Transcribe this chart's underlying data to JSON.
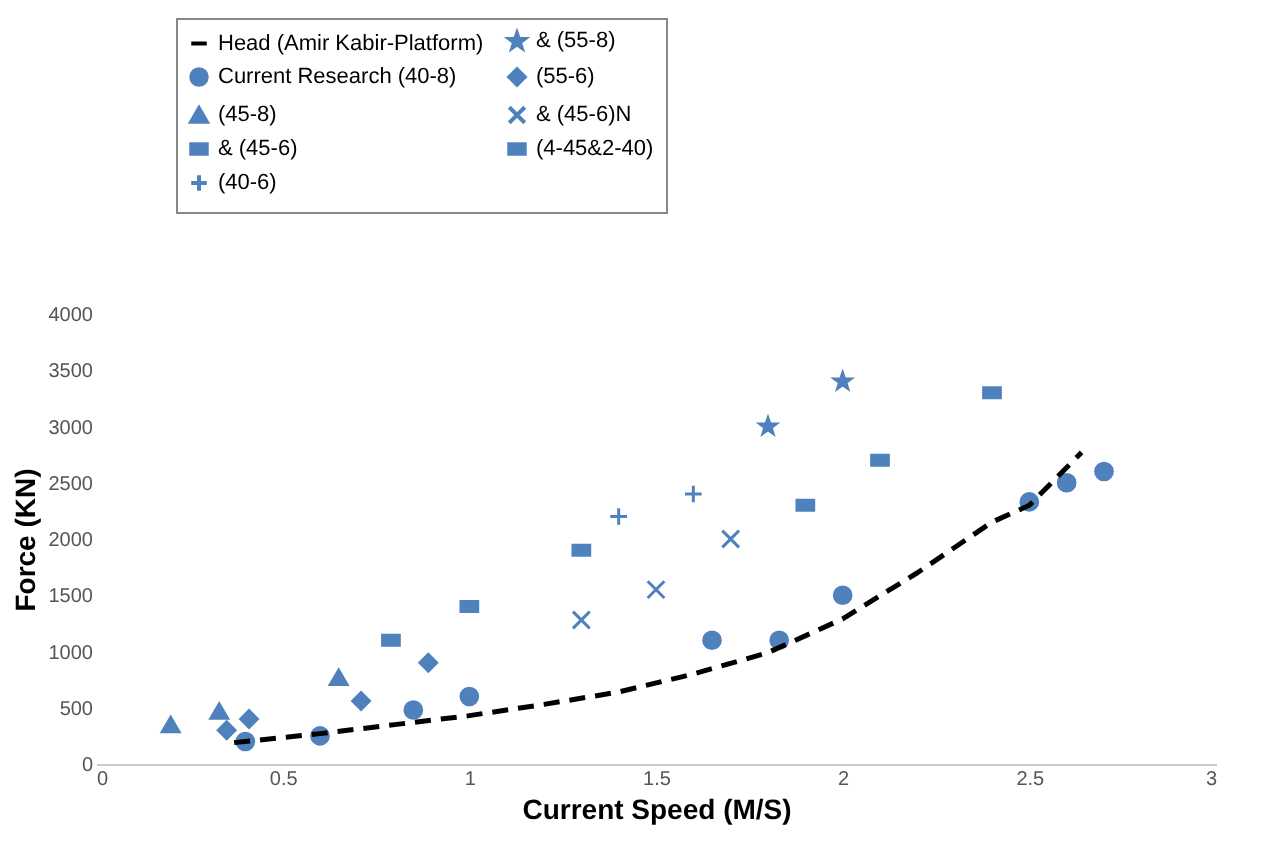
{
  "chart_data": {
    "type": "scatter",
    "xlabel": "Current Speed (M/S)",
    "ylabel": "Force (KN)",
    "xlim": [
      0,
      3
    ],
    "xticks": [
      0,
      0.5,
      1,
      1.5,
      2,
      2.5,
      3
    ],
    "ylim": [
      0,
      4000
    ],
    "yticks": [
      0,
      500,
      1000,
      1500,
      2000,
      2500,
      3000,
      3500,
      4000
    ],
    "grid": false,
    "legend": "top left",
    "series": [
      {
        "name": "Head (Amir Kabir-Platform)",
        "type": "line",
        "line_style": "dashed",
        "marker": "none",
        "color": "#000000",
        "x": [
          0.37,
          0.6,
          0.8,
          1.0,
          1.2,
          1.4,
          1.6,
          1.8,
          2.0,
          2.2,
          2.4,
          2.5,
          2.64
        ],
        "values": [
          190,
          270,
          350,
          430,
          530,
          640,
          800,
          990,
          1290,
          1700,
          2150,
          2300,
          2770
        ]
      },
      {
        "name": "Current Research (40-8)",
        "marker": "circle",
        "color": "#4f81bd",
        "x": [
          0.4,
          0.6,
          0.85,
          1.0,
          1.65,
          1.83,
          2.0,
          2.5,
          2.6,
          2.7
        ],
        "values": [
          200,
          250,
          480,
          600,
          1100,
          1100,
          1500,
          2330,
          2500,
          2600
        ]
      },
      {
        "name": "(45-8)",
        "marker": "triangle",
        "color": "#4f81bd",
        "x": [
          0.2,
          0.33,
          0.65
        ],
        "values": [
          350,
          470,
          770
        ]
      },
      {
        "name": "& (45-6)",
        "marker": "square",
        "color": "#4f81bd",
        "x": [
          0.79,
          1.0,
          1.3
        ],
        "values": [
          1100,
          1400,
          1900
        ]
      },
      {
        "name": "(40-6)",
        "marker": "cross",
        "color": "#4f81bd",
        "x": [
          1.4,
          1.6
        ],
        "values": [
          2200,
          2400
        ]
      },
      {
        "name": "& (55-8)",
        "marker": "star",
        "color": "#4f81bd",
        "x": [
          1.8,
          2.0
        ],
        "values": [
          3000,
          3400
        ]
      },
      {
        "name": "(55-6)",
        "marker": "diamond",
        "color": "#4f81bd",
        "x": [
          0.35,
          0.41,
          0.71,
          0.89
        ],
        "values": [
          300,
          400,
          560,
          900
        ]
      },
      {
        "name": "& (45-6)N",
        "color": "#4f81bd",
        "x": [
          1.3,
          1.5,
          1.7
        ],
        "values": [
          1280,
          1550,
          2000
        ]
      },
      {
        "name": "(4-45&2-40)",
        "marker": "square",
        "color": "#4f81bd",
        "x": [
          1.9,
          2.1,
          2.4
        ],
        "values": [
          2300,
          2700,
          3300
        ]
      }
    ]
  }
}
